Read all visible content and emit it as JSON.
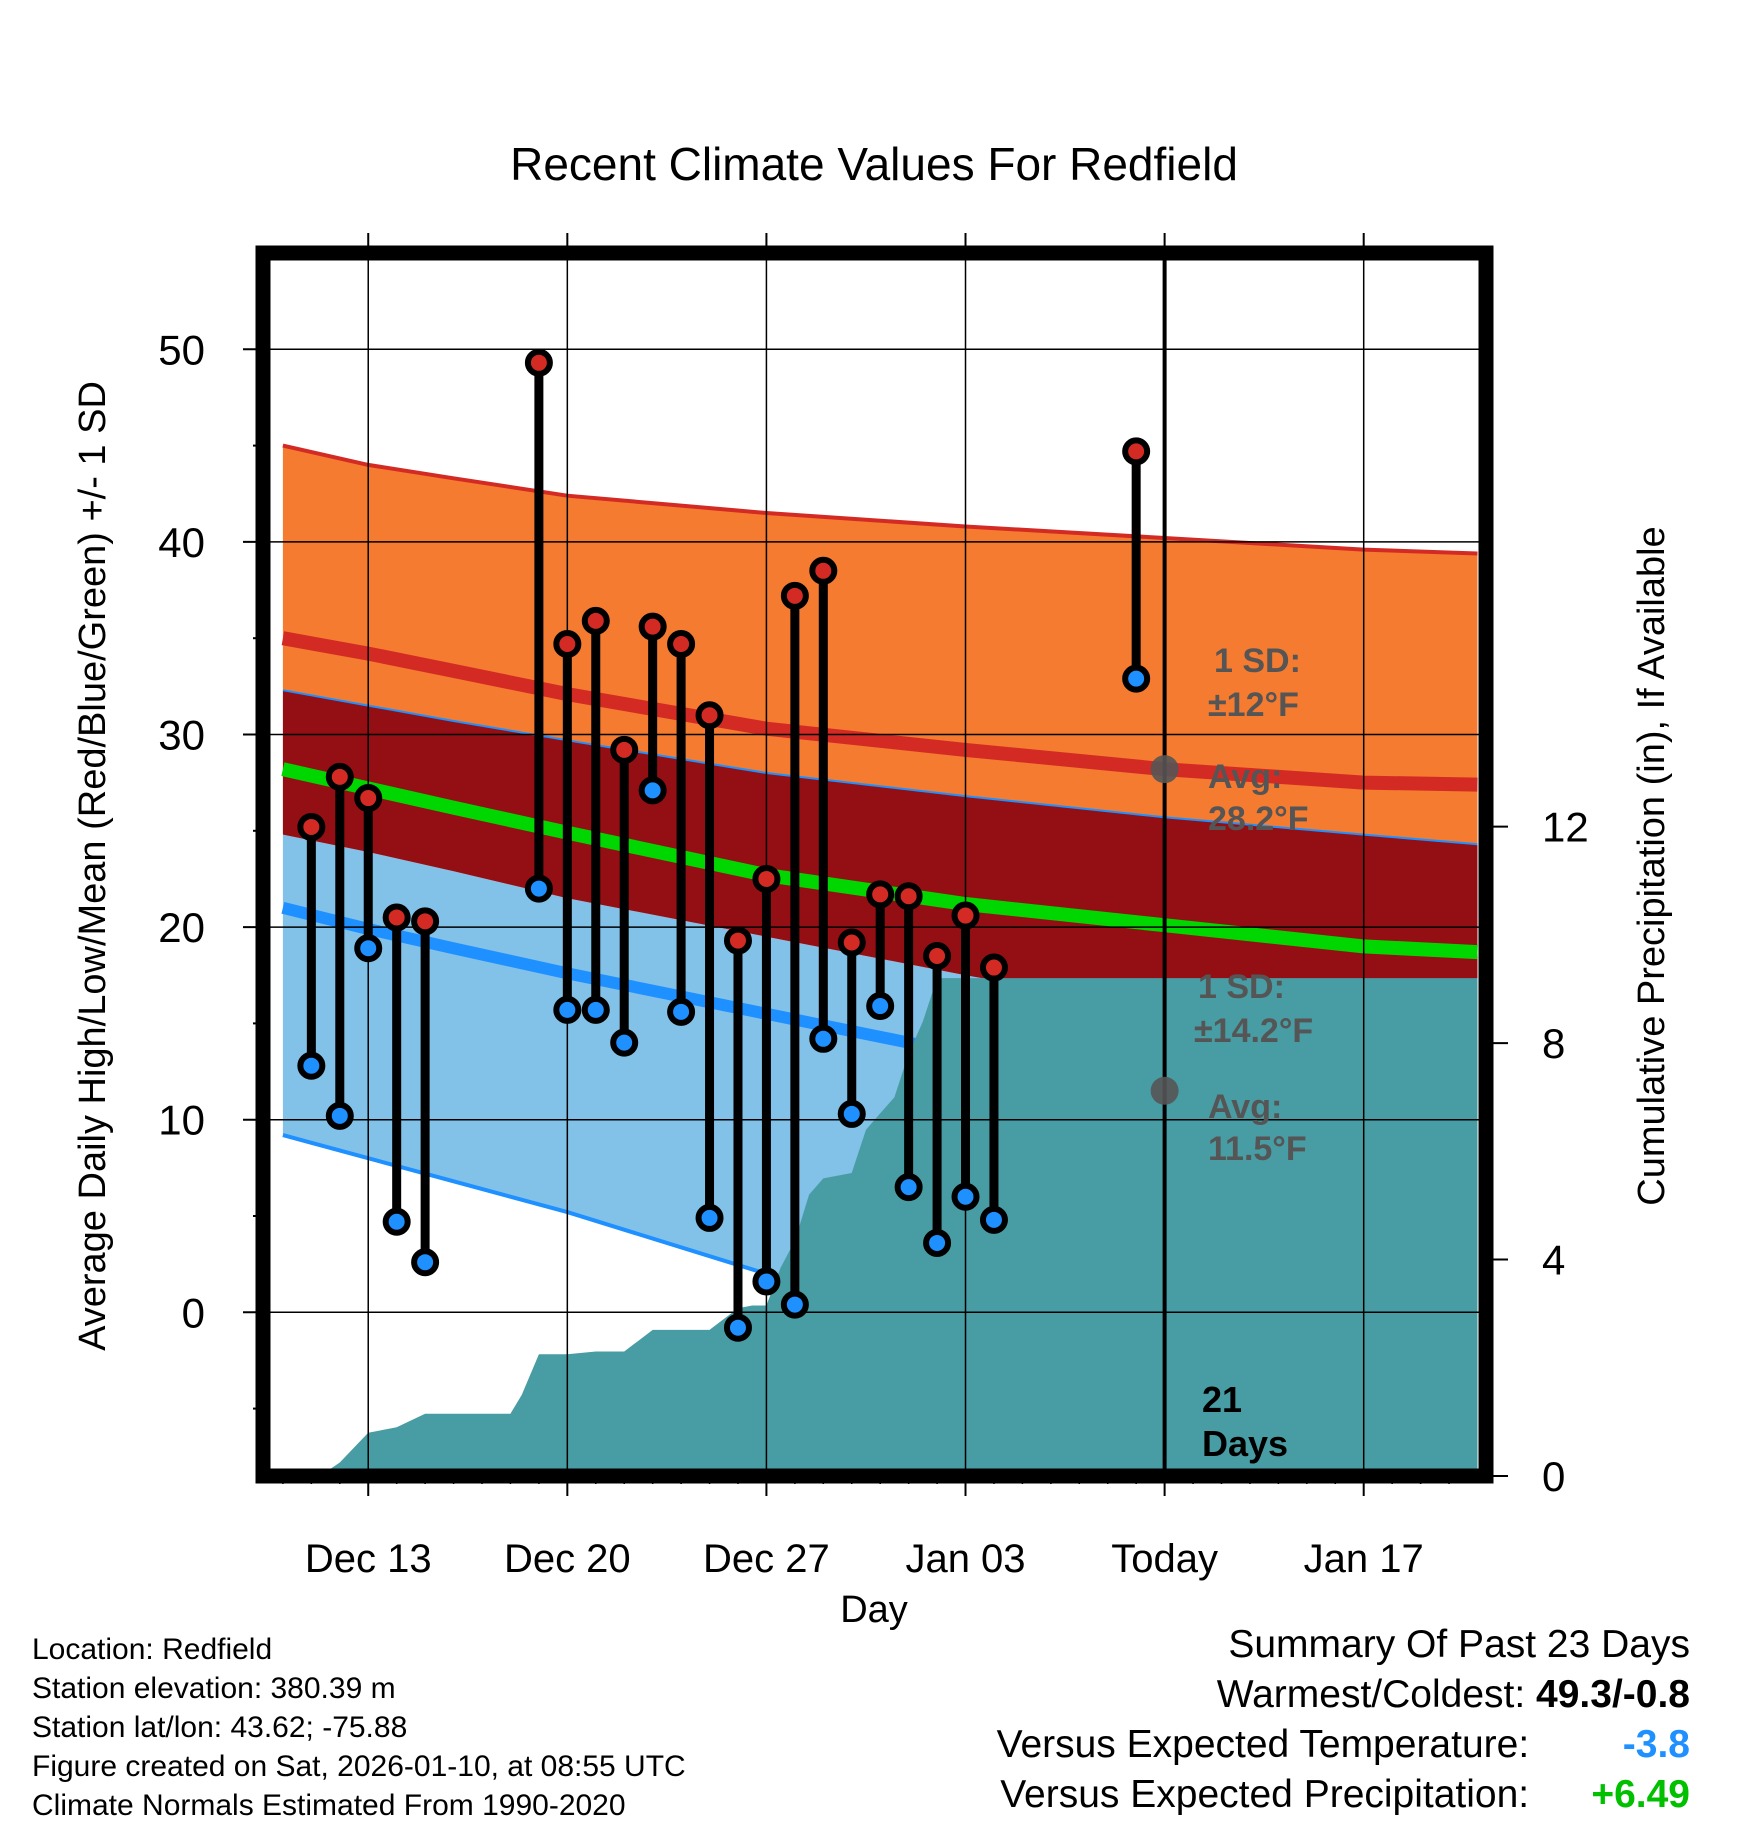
{
  "chart_data": {
    "type": "line",
    "title": "Recent Climate Values For Redfield",
    "xlabel": "Day",
    "ylabel": "Average Daily High/Low/Mean (Red/Blue/Green) +/- 1 SD",
    "y2label": "Cumulative Precipitation (in), If Available",
    "xlim": [
      -1.7,
      41.3
    ],
    "ylim": [
      -8.5,
      55
    ],
    "y2lim": [
      0,
      22.6
    ],
    "x_ticks": [
      {
        "x": 2,
        "label": "Dec 13"
      },
      {
        "x": 9,
        "label": "Dec 20"
      },
      {
        "x": 16,
        "label": "Dec 27"
      },
      {
        "x": 23,
        "label": "Jan 03"
      },
      {
        "x": 30,
        "label": "Today"
      },
      {
        "x": 37,
        "label": "Jan 17"
      }
    ],
    "y_ticks": [
      0,
      10,
      20,
      30,
      40,
      50
    ],
    "y2_ticks": [
      0,
      4,
      8,
      12
    ],
    "normals": {
      "x": [
        -1,
        2,
        5,
        9,
        16,
        23,
        30,
        37,
        41
      ],
      "high_mean": [
        35.0,
        34.2,
        33.3,
        32.1,
        30.3,
        29.2,
        28.2,
        27.5,
        27.4
      ],
      "high_upper": [
        45.0,
        44.0,
        43.3,
        42.4,
        41.5,
        40.8,
        40.2,
        39.6,
        39.4
      ],
      "high_lower": [
        32.3,
        31.5,
        30.7,
        29.7,
        28.0,
        26.8,
        25.7,
        24.8,
        24.3
      ],
      "low_mean": [
        21.0,
        19.9,
        18.9,
        17.6,
        15.5,
        13.4,
        11.5,
        10.4,
        10.0
      ],
      "low_upper": [
        24.8,
        23.9,
        22.9,
        21.5,
        19.5,
        17.5,
        15.7,
        15.3,
        15.2
      ],
      "low_lower": [
        9.2,
        8.0,
        6.8,
        5.2,
        2.0,
        -1.5,
        -4.5,
        -6.5,
        -7.5
      ],
      "mean": [
        28.2,
        27.2,
        26.2,
        24.9,
        22.7,
        21.2,
        20.1,
        19.0,
        18.7
      ]
    },
    "observed_until_x": 23,
    "daily": {
      "x": [
        0,
        1,
        2,
        3,
        4,
        8,
        9,
        10,
        11,
        12,
        13,
        14,
        15,
        16,
        17,
        18,
        19,
        20,
        21,
        22,
        23,
        24,
        29
      ],
      "high": [
        25.2,
        27.8,
        26.7,
        20.5,
        20.3,
        49.3,
        34.7,
        35.9,
        29.2,
        35.6,
        34.7,
        31.0,
        19.3,
        22.5,
        37.2,
        38.5,
        19.2,
        21.7,
        21.6,
        18.5,
        20.6,
        17.9,
        44.7
      ],
      "low": [
        12.8,
        10.2,
        18.9,
        4.7,
        2.6,
        22.0,
        15.7,
        15.7,
        14.0,
        27.1,
        15.6,
        4.9,
        -0.8,
        1.6,
        0.4,
        14.2,
        10.3,
        15.9,
        6.5,
        3.6,
        6.0,
        4.8,
        32.9
      ]
    },
    "precip_cumulative": {
      "x": [
        -1.0,
        0.3,
        1.0,
        2.0,
        3.0,
        4.0,
        5.0,
        6.0,
        7.0,
        7.4,
        8.0,
        9.0,
        10.0,
        11.0,
        12.0,
        13.0,
        14.0,
        15.0,
        15.5,
        16.0,
        16.5,
        17.0,
        17.5,
        18.0,
        19.0,
        19.5,
        20.0,
        20.5,
        21.0,
        21.5,
        22.0,
        23.0,
        30.0,
        41.0
      ],
      "values": [
        0.0,
        0.0,
        0.25,
        0.8,
        0.9,
        1.15,
        1.15,
        1.15,
        1.15,
        1.5,
        2.25,
        2.25,
        2.3,
        2.3,
        2.7,
        2.7,
        2.7,
        3.1,
        3.15,
        3.15,
        3.85,
        4.35,
        5.2,
        5.5,
        5.6,
        6.4,
        6.7,
        7.0,
        7.8,
        8.4,
        9.2,
        9.2,
        9.2,
        9.2
      ]
    },
    "annotations": {
      "high_sd": "1 SD:",
      "high_sd_value": "±12°F",
      "high_avg": "Avg:",
      "high_avg_value": "28.2°F",
      "low_sd": "1 SD:",
      "low_sd_value": "±14.2°F",
      "low_avg": "Avg:",
      "low_avg_value": "11.5°F",
      "days_count": "21",
      "days_word": "Days"
    },
    "colors": {
      "high_band": "#F47B30",
      "high_line": "#D42A24",
      "mid_band": "#930F14",
      "low_band": "#82C1E8",
      "low_line": "#1E90FF",
      "mean_line": "#00D600",
      "precip": "#489CA3",
      "high_marker": "#D42A24",
      "low_marker": "#1E90FF",
      "annotation": "#555555"
    }
  },
  "metadata": {
    "location": "Location: Redfield",
    "elevation": "Station elevation: 380.39 m",
    "latlon": "Station lat/lon: 43.62; -75.88",
    "created": "Figure created on Sat, 2026-01-10, at 08:55 UTC",
    "normals": "Climate Normals Estimated From 1990-2020"
  },
  "summary": {
    "title": "Summary Of Past 23 Days",
    "warmest_coldest_label": "Warmest/Coldest:",
    "warmest_coldest_value": "49.3/-0.8",
    "temp_label": "Versus Expected Temperature:",
    "temp_value": "-3.8",
    "temp_color": "#1E90FF",
    "precip_label": "Versus Expected Precipitation:",
    "precip_value": "+6.49",
    "precip_color": "#00C000"
  }
}
